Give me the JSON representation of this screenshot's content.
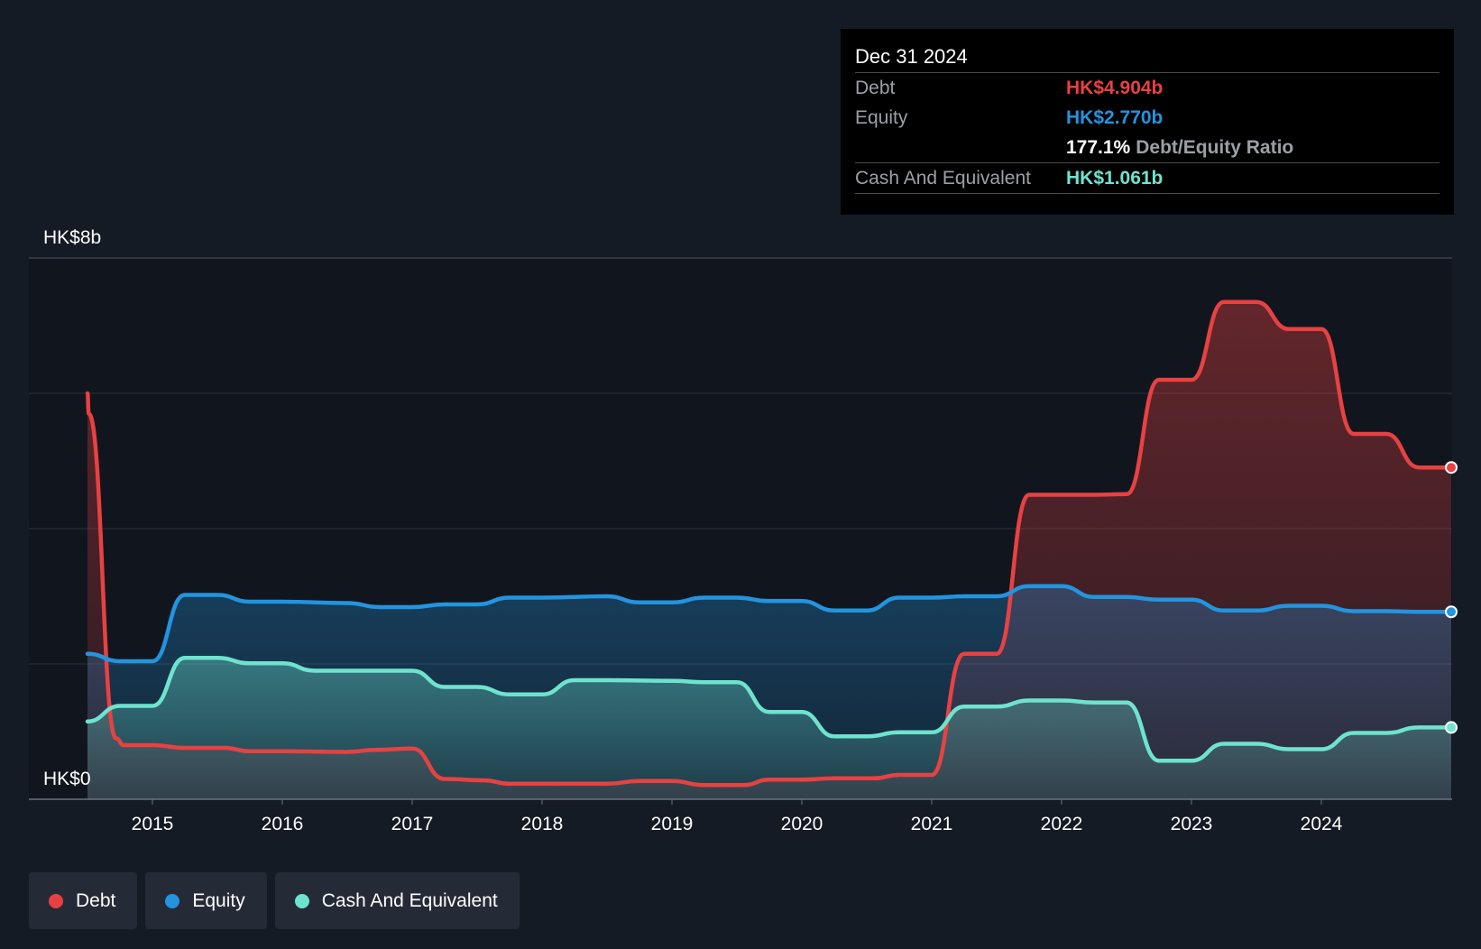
{
  "tooltip": {
    "date": "Dec 31 2024",
    "debt_label": "Debt",
    "debt_value": "HK$4.904b",
    "equity_label": "Equity",
    "equity_value": "HK$2.770b",
    "ratio_value": "177.1%",
    "ratio_label": "Debt/Equity Ratio",
    "cash_label": "Cash And Equivalent",
    "cash_value": "HK$1.061b"
  },
  "legend": [
    {
      "label": "Debt",
      "color": "#e84142"
    },
    {
      "label": "Equity",
      "color": "#2394df"
    },
    {
      "label": "Cash And Equivalent",
      "color": "#6ee3cf"
    }
  ],
  "chart_data": {
    "type": "area",
    "y_top_label": "HK$8b",
    "y_bottom_label": "HK$0",
    "ylim": [
      0,
      8
    ],
    "xlim": [
      2014.0,
      2025.0
    ],
    "x_ticks": [
      2015,
      2016,
      2017,
      2018,
      2019,
      2020,
      2021,
      2022,
      2023,
      2024
    ],
    "x_tick_labels": [
      "2015",
      "2016",
      "2017",
      "2018",
      "2019",
      "2020",
      "2021",
      "2022",
      "2023",
      "2024"
    ],
    "grid": true,
    "series": [
      {
        "name": "Debt",
        "color": "#e84142",
        "points": [
          [
            2014.5,
            6.0
          ],
          [
            2014.51,
            5.7
          ],
          [
            2014.72,
            0.9
          ],
          [
            2014.78,
            0.8
          ],
          [
            2015.0,
            0.8
          ],
          [
            2015.25,
            0.76
          ],
          [
            2015.55,
            0.76
          ],
          [
            2015.75,
            0.71
          ],
          [
            2016.0,
            0.71
          ],
          [
            2016.5,
            0.7
          ],
          [
            2016.72,
            0.73
          ],
          [
            2017.0,
            0.75
          ],
          [
            2017.25,
            0.3
          ],
          [
            2017.55,
            0.28
          ],
          [
            2017.75,
            0.23
          ],
          [
            2018.0,
            0.23
          ],
          [
            2018.5,
            0.23
          ],
          [
            2018.75,
            0.27
          ],
          [
            2019.0,
            0.27
          ],
          [
            2019.25,
            0.21
          ],
          [
            2019.55,
            0.21
          ],
          [
            2019.75,
            0.29
          ],
          [
            2020.0,
            0.29
          ],
          [
            2020.25,
            0.31
          ],
          [
            2020.55,
            0.31
          ],
          [
            2020.75,
            0.36
          ],
          [
            2021.0,
            0.36
          ],
          [
            2021.25,
            2.15
          ],
          [
            2021.5,
            2.15
          ],
          [
            2021.75,
            4.5
          ],
          [
            2022.0,
            4.5
          ],
          [
            2022.25,
            4.5
          ],
          [
            2022.5,
            4.51
          ],
          [
            2022.75,
            6.2
          ],
          [
            2023.0,
            6.2
          ],
          [
            2023.25,
            7.35
          ],
          [
            2023.5,
            7.35
          ],
          [
            2023.75,
            6.95
          ],
          [
            2024.0,
            6.95
          ],
          [
            2024.25,
            5.4
          ],
          [
            2024.5,
            5.4
          ],
          [
            2024.75,
            4.904
          ],
          [
            2025.0,
            4.904
          ]
        ]
      },
      {
        "name": "Equity",
        "color": "#2394df",
        "points": [
          [
            2014.5,
            2.15
          ],
          [
            2014.75,
            2.04
          ],
          [
            2015.0,
            2.04
          ],
          [
            2015.25,
            3.02
          ],
          [
            2015.5,
            3.02
          ],
          [
            2015.75,
            2.92
          ],
          [
            2016.0,
            2.92
          ],
          [
            2016.5,
            2.9
          ],
          [
            2016.75,
            2.84
          ],
          [
            2017.0,
            2.84
          ],
          [
            2017.25,
            2.88
          ],
          [
            2017.5,
            2.88
          ],
          [
            2017.75,
            2.98
          ],
          [
            2018.0,
            2.98
          ],
          [
            2018.5,
            3.0
          ],
          [
            2018.75,
            2.91
          ],
          [
            2019.0,
            2.91
          ],
          [
            2019.25,
            2.98
          ],
          [
            2019.5,
            2.98
          ],
          [
            2019.75,
            2.93
          ],
          [
            2020.0,
            2.93
          ],
          [
            2020.25,
            2.79
          ],
          [
            2020.5,
            2.79
          ],
          [
            2020.75,
            2.98
          ],
          [
            2021.0,
            2.98
          ],
          [
            2021.25,
            3.0
          ],
          [
            2021.5,
            3.0
          ],
          [
            2021.75,
            3.15
          ],
          [
            2022.0,
            3.15
          ],
          [
            2022.25,
            2.99
          ],
          [
            2022.5,
            2.99
          ],
          [
            2022.75,
            2.95
          ],
          [
            2023.0,
            2.95
          ],
          [
            2023.25,
            2.79
          ],
          [
            2023.5,
            2.79
          ],
          [
            2023.75,
            2.86
          ],
          [
            2024.0,
            2.86
          ],
          [
            2024.25,
            2.78
          ],
          [
            2024.5,
            2.78
          ],
          [
            2024.75,
            2.77
          ],
          [
            2025.0,
            2.77
          ]
        ]
      },
      {
        "name": "Cash And Equivalent",
        "color": "#6ee3cf",
        "points": [
          [
            2014.5,
            1.15
          ],
          [
            2014.75,
            1.38
          ],
          [
            2015.0,
            1.38
          ],
          [
            2015.25,
            2.09
          ],
          [
            2015.5,
            2.09
          ],
          [
            2015.75,
            2.01
          ],
          [
            2016.0,
            2.01
          ],
          [
            2016.25,
            1.9
          ],
          [
            2016.5,
            1.9
          ],
          [
            2017.0,
            1.9
          ],
          [
            2017.25,
            1.66
          ],
          [
            2017.5,
            1.66
          ],
          [
            2017.75,
            1.55
          ],
          [
            2018.0,
            1.55
          ],
          [
            2018.25,
            1.76
          ],
          [
            2018.5,
            1.76
          ],
          [
            2019.0,
            1.75
          ],
          [
            2019.25,
            1.73
          ],
          [
            2019.5,
            1.73
          ],
          [
            2019.75,
            1.29
          ],
          [
            2020.0,
            1.29
          ],
          [
            2020.25,
            0.93
          ],
          [
            2020.5,
            0.93
          ],
          [
            2020.75,
            0.99
          ],
          [
            2021.0,
            0.99
          ],
          [
            2021.25,
            1.37
          ],
          [
            2021.5,
            1.37
          ],
          [
            2021.75,
            1.46
          ],
          [
            2022.0,
            1.46
          ],
          [
            2022.25,
            1.43
          ],
          [
            2022.5,
            1.43
          ],
          [
            2022.75,
            0.57
          ],
          [
            2023.0,
            0.57
          ],
          [
            2023.25,
            0.82
          ],
          [
            2023.5,
            0.82
          ],
          [
            2023.75,
            0.74
          ],
          [
            2024.0,
            0.74
          ],
          [
            2024.25,
            0.98
          ],
          [
            2024.5,
            0.98
          ],
          [
            2024.75,
            1.061
          ],
          [
            2025.0,
            1.061
          ]
        ]
      }
    ]
  }
}
